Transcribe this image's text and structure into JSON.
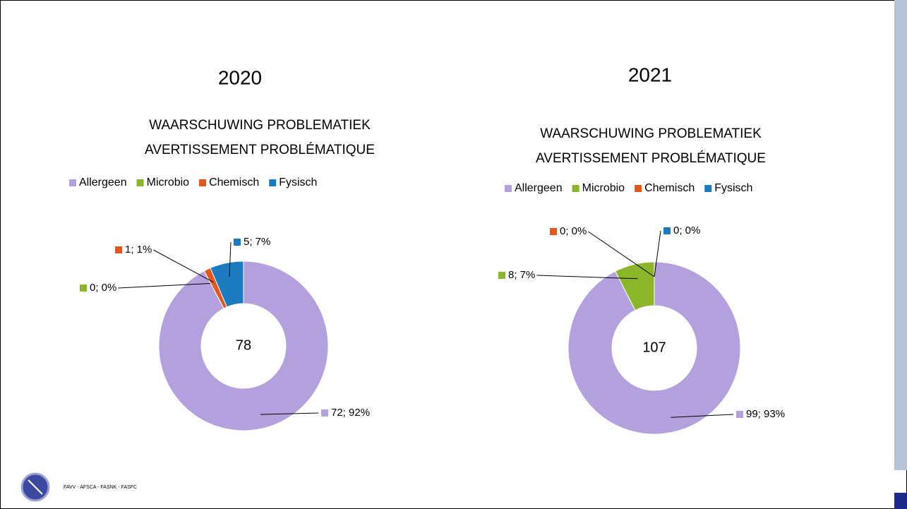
{
  "chart_data": [
    {
      "type": "donut",
      "heading": "2020",
      "title": [
        "WAARSCHUWING PROBLEMATIEK",
        "AVERTISSEMENT PROBLÉMATIQUE"
      ],
      "categories": [
        "Allergeen",
        "Microbio",
        "Chemisch",
        "Fysisch"
      ],
      "colors": [
        "#b4a0dc",
        "#8cb62a",
        "#e2571e",
        "#1a7cbf"
      ],
      "values": [
        72,
        0,
        1,
        5
      ],
      "value_labels": [
        "72; 92%",
        "0; 0%",
        "1; 1%",
        "5; 7%"
      ],
      "total": 78,
      "legend": "top"
    },
    {
      "type": "donut",
      "heading": "2021",
      "title": [
        "WAARSCHUWING PROBLEMATIEK",
        "AVERTISSEMENT PROBLÉMATIQUE"
      ],
      "categories": [
        "Allergeen",
        "Microbio",
        "Chemisch",
        "Fysisch"
      ],
      "colors": [
        "#b4a0dc",
        "#8cb62a",
        "#e2571e",
        "#1a7cbf"
      ],
      "values": [
        99,
        8,
        0,
        0
      ],
      "value_labels": [
        "99; 93%",
        "8; 7%",
        "0; 0%",
        "0; 0%"
      ],
      "total": 107,
      "legend": "top"
    }
  ],
  "footer": "FAVV  -  AFSCA  -  FASNK  -  FASFC"
}
